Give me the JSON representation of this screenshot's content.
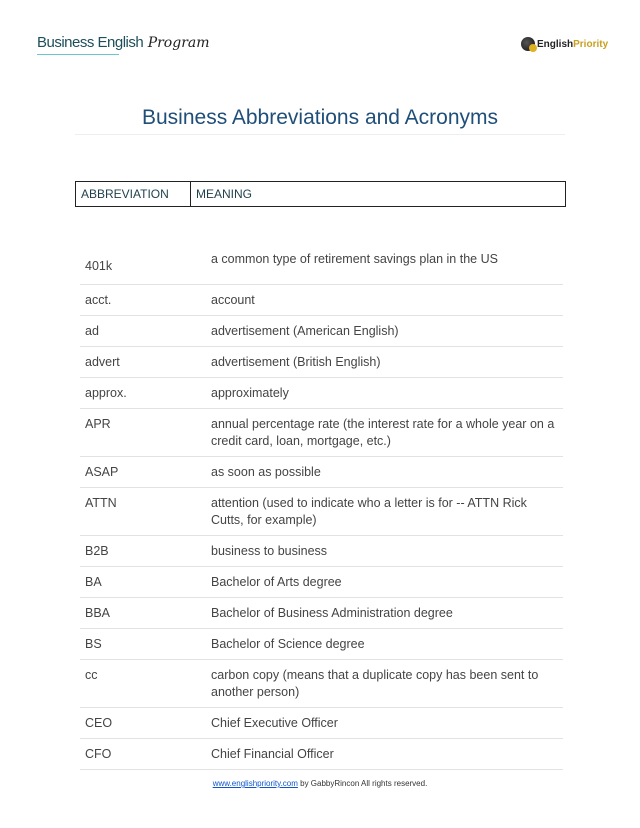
{
  "header": {
    "logo_left_main": "Business English",
    "logo_left_script": "Program",
    "logo_right_a": "English",
    "logo_right_b": "Priority"
  },
  "title": "Business Abbreviations and Acronyms",
  "table": {
    "columns": [
      "ABBREVIATION",
      "MEANING"
    ],
    "rows": [
      {
        "abbr": "401k",
        "meaning": "a common type of retirement savings plan in the US"
      },
      {
        "abbr": "acct.",
        "meaning": "account"
      },
      {
        "abbr": "ad",
        "meaning": "advertisement (American English)"
      },
      {
        "abbr": "advert",
        "meaning": "advertisement (British English)"
      },
      {
        "abbr": "approx.",
        "meaning": "approximately"
      },
      {
        "abbr": "APR",
        "meaning": "annual percentage rate (the interest rate for a whole year on a credit card, loan, mortgage, etc.)"
      },
      {
        "abbr": "ASAP",
        "meaning": "as soon as possible"
      },
      {
        "abbr": "ATTN",
        "meaning": "attention (used to indicate who a letter is for -- ATTN Rick Cutts, for example)"
      },
      {
        "abbr": "B2B",
        "meaning": "business to business"
      },
      {
        "abbr": "BA",
        "meaning": "Bachelor of Arts degree"
      },
      {
        "abbr": "BBA",
        "meaning": "Bachelor of Business Administration degree"
      },
      {
        "abbr": "BS",
        "meaning": "Bachelor of Science degree"
      },
      {
        "abbr": "cc",
        "meaning": "carbon copy (means that a duplicate copy has been sent to another person)"
      },
      {
        "abbr": "CEO",
        "meaning": "Chief Executive Officer"
      },
      {
        "abbr": "CFO",
        "meaning": "Chief Financial Officer"
      }
    ]
  },
  "footer": {
    "link": "www.englishpriority.com",
    "text": " by GabbyRincon All rights reserved."
  }
}
